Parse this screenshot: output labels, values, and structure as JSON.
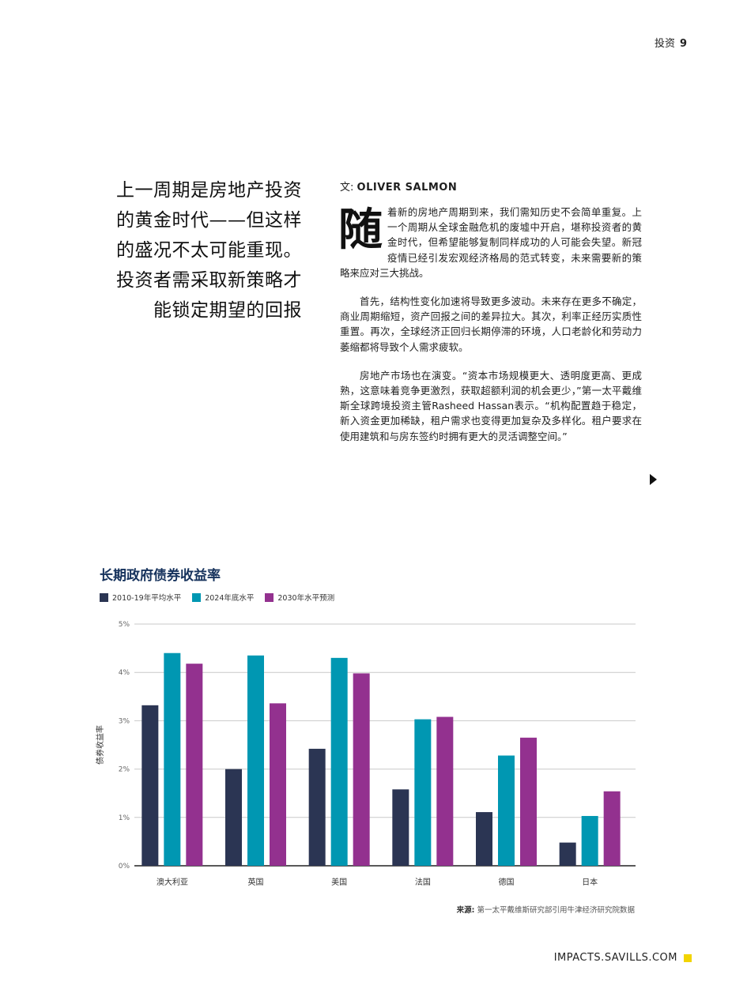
{
  "header": {
    "section": "投资",
    "page_number": "9"
  },
  "pull_quote": {
    "lines": [
      "上一周期是房地产投资",
      "的黄金时代——但这样",
      "的盛况不太可能重现。",
      "投资者需采取新策略才",
      "能锁定期望的回报"
    ]
  },
  "article": {
    "byline_prefix": "文: ",
    "author": "OLIVER SALMON",
    "dropcap": "随",
    "paragraphs": [
      "着新的房地产周期到来，我们需知历史不会简单重复。上一个周期从全球金融危机的废墟中开启，堪称投资者的黄金时代，但希望能够复制同样成功的人可能会失望。新冠疫情已经引发宏观经济格局的范式转变，未来需要新的策略来应对三大挑战。",
      "首先，结构性变化加速将导致更多波动。未来存在更多不确定，商业周期缩短，资产回报之间的差异拉大。其次，利率正经历实质性重置。再次，全球经济正回归长期停滞的环境，人口老龄化和劳动力萎缩都将导致个人需求疲软。",
      "房地产市场也在演变。“资本市场规模更大、透明度更高、更成熟，这意味着竞争更激烈，获取超额利润的机会更少，”第一太平戴维斯全球跨境投资主管Rasheed Hassan表示。“机构配置趋于稳定，新入资金更加稀缺，租户需求也变得更加复杂及多样化。租户要求在使用建筑和与房东签约时拥有更大的灵活调整空间。”"
    ]
  },
  "chart_data": {
    "type": "bar",
    "title": "长期政府债券收益率",
    "ylabel": "债券收益率",
    "xlabel": "",
    "ylim": [
      0,
      5
    ],
    "yticks": [
      "0%",
      "1%",
      "2%",
      "3%",
      "4%",
      "5%"
    ],
    "categories": [
      "澳大利亚",
      "英国",
      "美国",
      "法国",
      "德国",
      "日本"
    ],
    "series": [
      {
        "name": "2010-19年平均水平",
        "color": "#2b3553",
        "values": [
          3.32,
          2.0,
          2.42,
          1.58,
          1.11,
          0.48
        ]
      },
      {
        "name": "2024年底水平",
        "color": "#0097b2",
        "values": [
          4.4,
          4.35,
          4.3,
          3.03,
          2.28,
          1.03
        ]
      },
      {
        "name": "2030年水平预测",
        "color": "#93318f",
        "values": [
          4.18,
          3.36,
          3.98,
          3.08,
          2.65,
          1.54
        ]
      }
    ],
    "grid": true,
    "legend": "top-left"
  },
  "source": {
    "label": "来源:",
    "text": " 第一太平戴维斯研究部引用牛津经济研究院数据"
  },
  "footer": {
    "site": "IMPACTS.SAVILLS.COM"
  },
  "colors": {
    "accent_yellow": "#f2d400",
    "title_navy": "#16325c"
  }
}
